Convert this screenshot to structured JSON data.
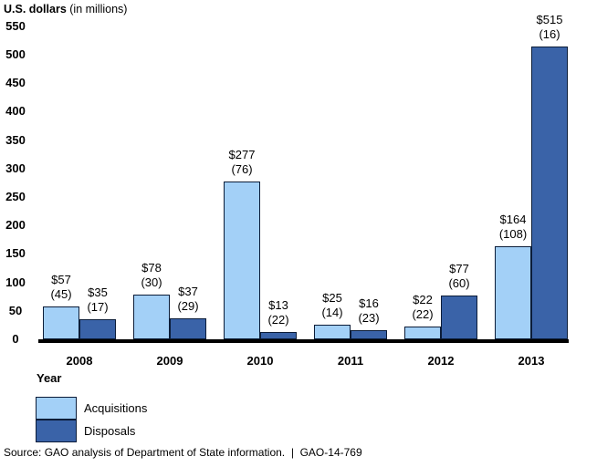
{
  "title": {
    "main": "U.S. dollars",
    "unit": " (in millions)"
  },
  "chart_data": {
    "type": "bar",
    "title": "U.S. dollars (in millions)",
    "xlabel": "Year",
    "ylabel": "U.S. dollars (in millions)",
    "categories": [
      "2008",
      "2009",
      "2010",
      "2011",
      "2012",
      "2013"
    ],
    "series": [
      {
        "name": "Acquisitions",
        "color": "#a3d0f7",
        "values": [
          57,
          78,
          277,
          25,
          22,
          164
        ],
        "counts": [
          45,
          30,
          76,
          14,
          22,
          108
        ],
        "labels": [
          "$57",
          "$78",
          "$277",
          "$25",
          "$22",
          "$164"
        ],
        "count_labels": [
          "(45)",
          "(30)",
          "(76)",
          "(14)",
          "(22)",
          "(108)"
        ]
      },
      {
        "name": "Disposals",
        "color": "#3a63a8",
        "values": [
          35,
          37,
          13,
          16,
          77,
          515
        ],
        "counts": [
          17,
          29,
          22,
          23,
          60,
          16
        ],
        "labels": [
          "$35",
          "$37",
          "$13",
          "$16",
          "$77",
          "$515"
        ],
        "count_labels": [
          "(17)",
          "(29)",
          "(22)",
          "(23)",
          "(60)",
          "(16)"
        ]
      }
    ],
    "ylim": [
      0,
      550
    ],
    "ytick_step": 50,
    "grid": false,
    "legend_position": "bottom-left",
    "bar_outline_color": "#0b1c38",
    "axis_line_color": "#000000"
  },
  "source": "Source: GAO analysis of Department of State information.  |  GAO-14-769"
}
